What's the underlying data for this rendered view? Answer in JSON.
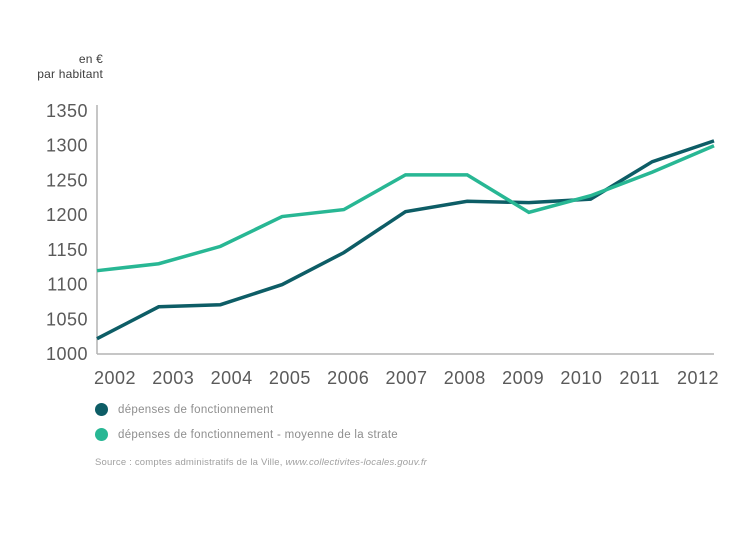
{
  "unit_label": {
    "line1": "en €",
    "line2": "par habitant"
  },
  "chart_data": {
    "type": "line",
    "x": [
      2002,
      2003,
      2004,
      2005,
      2006,
      2007,
      2008,
      2009,
      2010,
      2011,
      2012
    ],
    "series": [
      {
        "name": "dépenses de fonctionnement",
        "color": "#0d5d66",
        "values": [
          1022,
          1068,
          1071,
          1100,
          1146,
          1205,
          1220,
          1218,
          1223,
          1277,
          1307
        ]
      },
      {
        "name": "dépenses de fonctionnement - moyenne de la strate",
        "color": "#28b794",
        "values": [
          1120,
          1130,
          1155,
          1198,
          1208,
          1258,
          1258,
          1204,
          1228,
          1262,
          1300
        ]
      }
    ],
    "ylabel": "en € par habitant",
    "ylim": [
      1000,
      1350
    ],
    "y_ticks": [
      1350,
      1300,
      1250,
      1200,
      1150,
      1100,
      1050,
      1000
    ],
    "grid": false,
    "legend_position": "bottom-left"
  },
  "legend": [
    {
      "label": "dépenses de fonctionnement"
    },
    {
      "label": "dépenses de fonctionnement - moyenne de la strate"
    }
  ],
  "source": {
    "prefix": "Source : comptes administratifs de la Ville, ",
    "url": "www.collectivites-locales.gouv.fr"
  },
  "colors": {
    "axis": "#b3b3b3",
    "tick_text": "#5a5a5a"
  }
}
